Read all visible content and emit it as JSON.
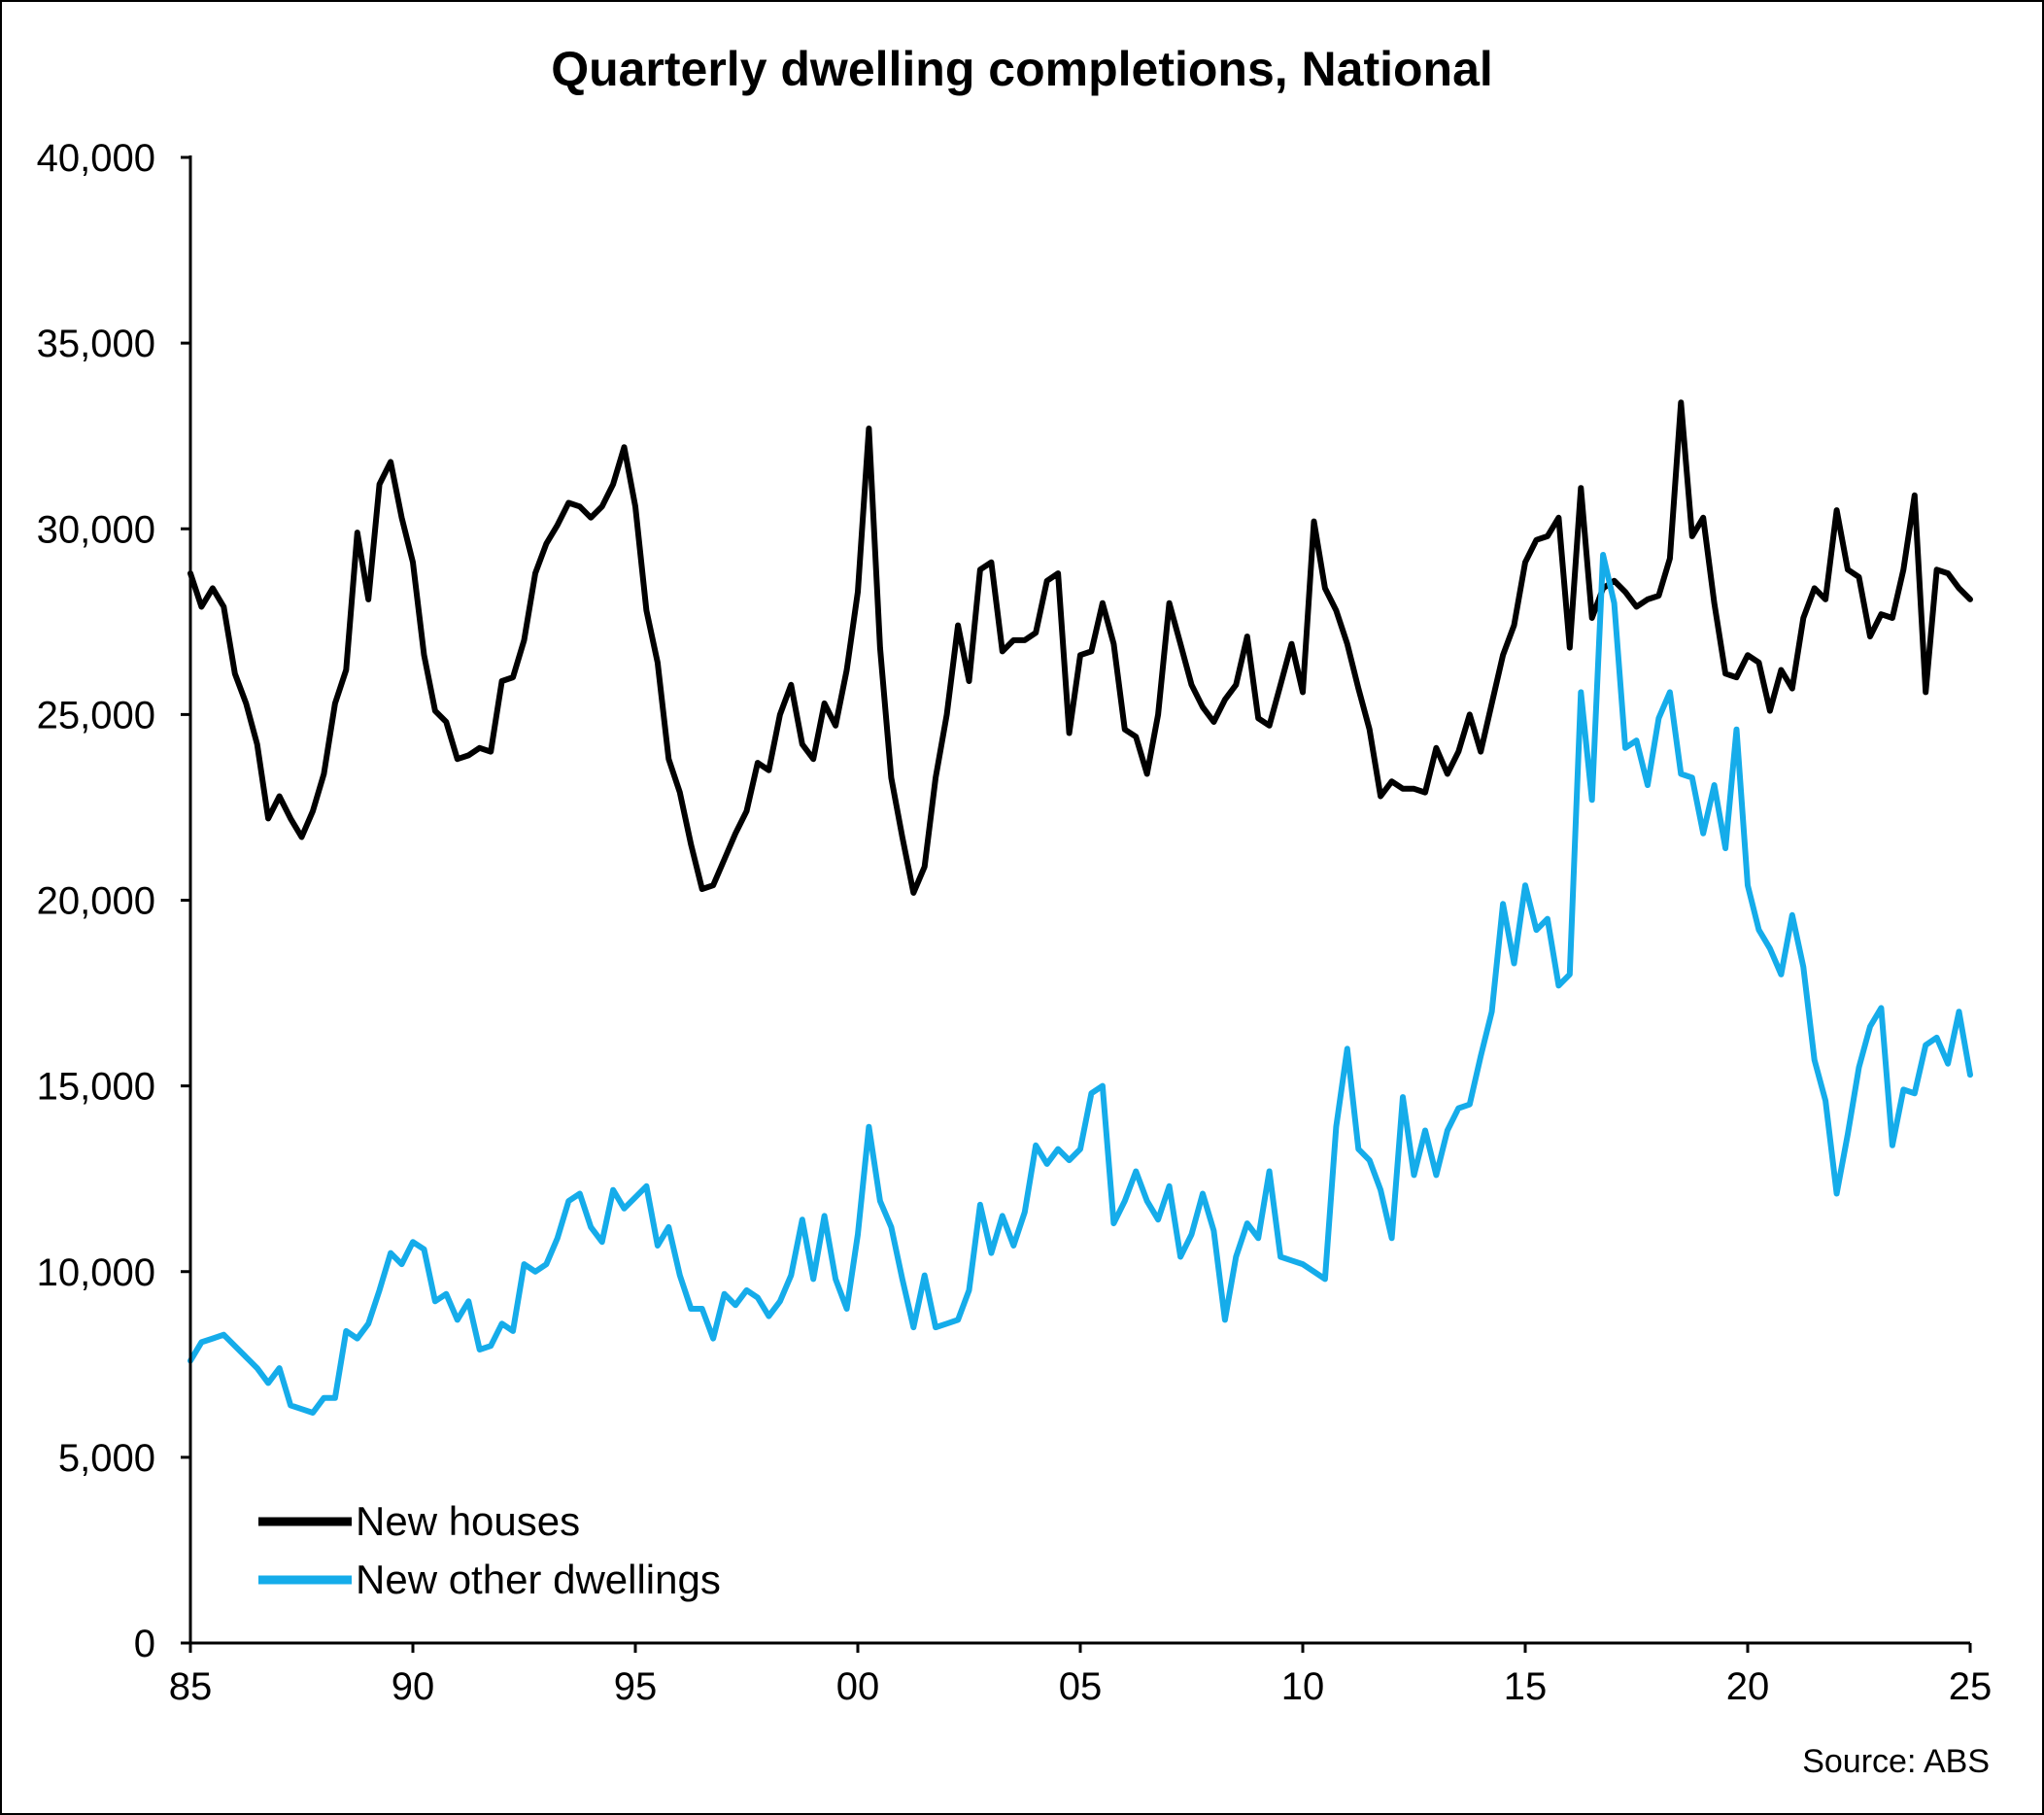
{
  "chart_data": {
    "type": "line",
    "title": "Quarterly dwelling completions, National",
    "source": "Source: ABS",
    "ylim": [
      0,
      40000
    ],
    "yticks": [
      0,
      5000,
      10000,
      15000,
      20000,
      25000,
      30000,
      35000,
      40000
    ],
    "ytick_labels": [
      "0",
      "5,000",
      "10,000",
      "15,000",
      "20,000",
      "25,000",
      "30,000",
      "35,000",
      "40,000"
    ],
    "xlim": [
      1985,
      2025
    ],
    "xticks": [
      1985,
      1990,
      1995,
      2000,
      2005,
      2010,
      2015,
      2020,
      2025
    ],
    "xtick_labels": [
      "85",
      "90",
      "95",
      "00",
      "05",
      "10",
      "15",
      "20",
      "25"
    ],
    "legend_position": "bottom-left",
    "series": [
      {
        "name": "New houses",
        "color": "#000000",
        "start": 1985,
        "step": 0.25,
        "values": [
          28800,
          27900,
          28400,
          27900,
          26100,
          25300,
          24200,
          22200,
          22800,
          22200,
          21700,
          22400,
          23400,
          25300,
          26200,
          29900,
          28100,
          31200,
          31800,
          30300,
          29100,
          26600,
          25100,
          24800,
          23800,
          23900,
          24100,
          24000,
          25900,
          26000,
          27000,
          28800,
          29600,
          30100,
          30700,
          30600,
          30300,
          30600,
          31200,
          32200,
          30600,
          27800,
          26400,
          23800,
          22900,
          21500,
          20300,
          20400,
          21100,
          21800,
          22400,
          23700,
          23500,
          25000,
          25800,
          24200,
          23800,
          25300,
          24700,
          26200,
          28300,
          32700,
          26800,
          23300,
          21700,
          20200,
          20900,
          23300,
          25000,
          27400,
          25900,
          28900,
          29100,
          26700,
          27000,
          27000,
          27200,
          28600,
          28800,
          24500,
          26600,
          26700,
          28000,
          26900,
          24600,
          24400,
          23400,
          25000,
          28000,
          26900,
          25800,
          25200,
          24800,
          25400,
          25800,
          27100,
          24900,
          24700,
          25800,
          26900,
          25600,
          30200,
          28400,
          27800,
          26900,
          25700,
          24600,
          22800,
          23200,
          23000,
          23000,
          22900,
          24100,
          23400,
          24000,
          25000,
          24000,
          25300,
          26600,
          27400,
          29100,
          29700,
          29800,
          30300,
          26800,
          31100,
          27600,
          28400,
          28600,
          28300,
          27900,
          28100,
          28200,
          29200,
          33400,
          29800,
          30300,
          28000,
          26100,
          26000,
          26600,
          26400,
          25100,
          26200,
          25700,
          27600,
          28400,
          28100,
          30500,
          28900,
          28700,
          27100,
          27700,
          27600,
          28900,
          30900,
          25600,
          28900,
          28800,
          28400,
          28100
        ]
      },
      {
        "name": "New other dwellings",
        "color": "#15acea",
        "start": 1985,
        "step": 0.25,
        "values": [
          7600,
          8100,
          8200,
          8300,
          8000,
          7700,
          7400,
          7000,
          7400,
          6400,
          6300,
          6200,
          6600,
          6600,
          8400,
          8200,
          8600,
          9500,
          10500,
          10200,
          10800,
          10600,
          9200,
          9400,
          8700,
          9200,
          7900,
          8000,
          8600,
          8400,
          10200,
          10000,
          10200,
          10900,
          11900,
          12100,
          11200,
          10800,
          12200,
          11700,
          12000,
          12300,
          10700,
          11200,
          9900,
          9000,
          9000,
          8200,
          9400,
          9100,
          9500,
          9300,
          8800,
          9200,
          9900,
          11400,
          9800,
          11500,
          9800,
          9000,
          11000,
          13900,
          11900,
          11200,
          9800,
          8500,
          9900,
          8500,
          8600,
          8700,
          9500,
          11800,
          10500,
          11500,
          10700,
          11600,
          13400,
          12900,
          13300,
          13000,
          13300,
          14800,
          15000,
          11300,
          11900,
          12700,
          11900,
          11400,
          12300,
          10400,
          11000,
          12100,
          11100,
          8700,
          10400,
          11300,
          10900,
          12700,
          10400,
          10300,
          10200,
          10000,
          9800,
          13900,
          16000,
          13300,
          13000,
          12200,
          10900,
          14700,
          12600,
          13800,
          12600,
          13800,
          14400,
          14500,
          15800,
          17000,
          19900,
          18300,
          20400,
          19200,
          19500,
          17700,
          18000,
          25600,
          22700,
          29300,
          28000,
          24100,
          24300,
          23100,
          24900,
          25600,
          23400,
          23300,
          21800,
          23100,
          21400,
          24600,
          20400,
          19200,
          18700,
          18000,
          19600,
          18200,
          15700,
          14600,
          12100,
          13700,
          15500,
          16600,
          17100,
          13400,
          14900,
          14800,
          16100,
          16300,
          15600,
          17000,
          15300
        ]
      }
    ]
  }
}
